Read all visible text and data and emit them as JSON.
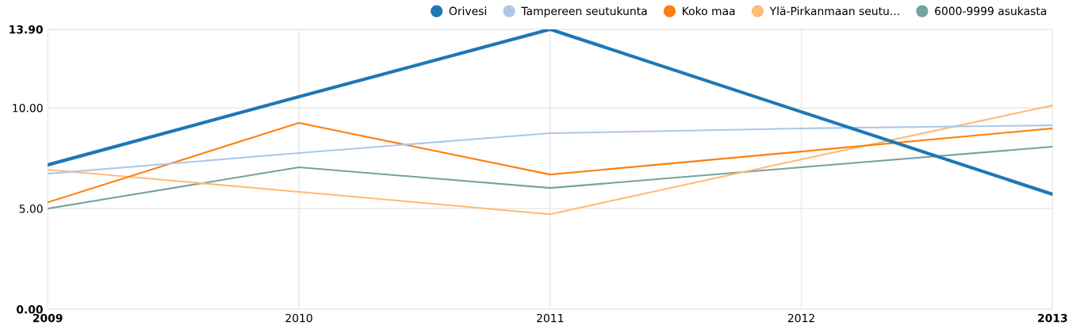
{
  "chart_data": {
    "type": "line",
    "x": [
      2009,
      2010,
      2011,
      2012,
      2013
    ],
    "xlim": [
      2009,
      2013
    ],
    "xticks": [
      2009,
      2010,
      2011,
      2012,
      2013
    ],
    "ylim": [
      0,
      13.9
    ],
    "yticks": [
      {
        "value": 0,
        "label": "0.00"
      },
      {
        "value": 5,
        "label": "5.00"
      },
      {
        "value": 10,
        "label": "10.00"
      },
      {
        "value": 13.9,
        "label": "13.90"
      }
    ],
    "grid": true,
    "legend": "top right",
    "marker": "none",
    "series": [
      {
        "name": "Orivesi",
        "color": "#1f77b4",
        "values": [
          7.17,
          10.55,
          13.9,
          9.8,
          5.71
        ]
      },
      {
        "name": "Tampereen seutukunta",
        "color": "#aec7e8",
        "values": [
          6.73,
          7.76,
          8.74,
          8.98,
          9.13
        ]
      },
      {
        "name": "Koko maa",
        "color": "#ff7f0e",
        "values": [
          5.31,
          9.25,
          6.69,
          7.83,
          8.98
        ]
      },
      {
        "name": "Ylä-Pirkanmaan seutu...",
        "color": "#ffbb78",
        "values": [
          6.93,
          5.83,
          4.72,
          7.44,
          10.12
        ]
      },
      {
        "name": "6000-9999 asukasta",
        "color": "#74a3a0",
        "values": [
          5.0,
          7.05,
          6.02,
          7.05,
          8.07
        ]
      }
    ]
  }
}
